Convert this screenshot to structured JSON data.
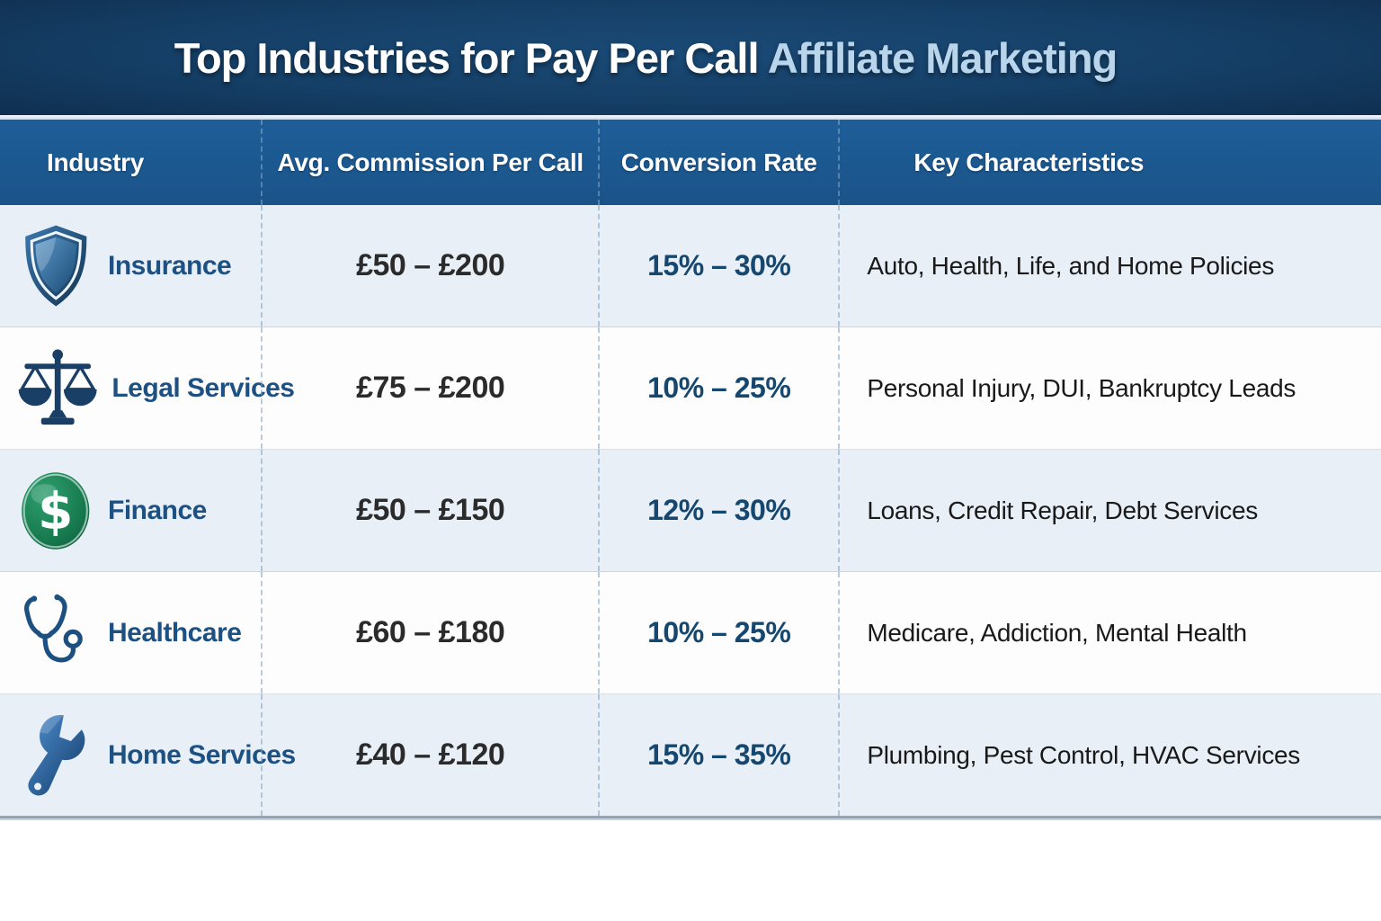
{
  "title": {
    "main": "Top Industries for Pay Per Call ",
    "accent": "Affiliate Marketing"
  },
  "table": {
    "columns": [
      "Industry",
      "Avg. Commission Per Call",
      "Conversion Rate",
      "Key Characteristics"
    ],
    "rows": [
      {
        "industry": "Insurance",
        "icon": "shield-icon",
        "commission": "£50 – £200",
        "conversion": "15% – 30%",
        "characteristics": "Auto, Health, Life, and Home Policies"
      },
      {
        "industry": "Legal Services",
        "icon": "scales-icon",
        "commission": "£75 – £200",
        "conversion": "10% – 25%",
        "characteristics": "Personal Injury, DUI, Bankruptcy Leads"
      },
      {
        "industry": "Finance",
        "icon": "dollar-icon",
        "commission": "£50 – £150",
        "conversion": "12% – 30%",
        "characteristics": "Loans, Credit Repair, Debt Services"
      },
      {
        "industry": "Healthcare",
        "icon": "stethoscope-icon",
        "commission": "£60 – £180",
        "conversion": "10% – 25%",
        "characteristics": "Medicare, Addiction, Mental Health"
      },
      {
        "industry": "Home Services",
        "icon": "wrench-icon",
        "commission": "£40 – £120",
        "conversion": "15% – 35%",
        "characteristics": "Plumbing, Pest Control, HVAC Services"
      }
    ]
  },
  "chart_data": {
    "type": "table",
    "title": "Top Industries for Pay Per Call Affiliate Marketing",
    "columns": [
      "Industry",
      "Avg. Commission Per Call",
      "Conversion Rate",
      "Key Characteristics"
    ],
    "rows": [
      [
        "Insurance",
        "£50 – £200",
        "15% – 30%",
        "Auto, Health, Life, and Home Policies"
      ],
      [
        "Legal Services",
        "£75 – £200",
        "10% – 25%",
        "Personal Injury, DUI, Bankruptcy Leads"
      ],
      [
        "Finance",
        "£50 – £150",
        "12% – 30%",
        "Loans, Credit Repair, Debt Services"
      ],
      [
        "Healthcare",
        "£60 – £180",
        "10% – 25%",
        "Medicare, Addiction, Mental Health"
      ],
      [
        "Home Services",
        "£40 – £120",
        "15% – 35%",
        "Plumbing, Pest Control, HVAC Services"
      ]
    ]
  },
  "colors": {
    "title_background": "#153f66",
    "title_accent_text": "#b9d5ec",
    "header_background": "#1c5890",
    "row_light_blue": "#e8eff7",
    "row_white": "#fdfdfe",
    "industry_name_text": "#1e5183",
    "conversion_text": "#15476f",
    "body_text": "#191919"
  }
}
